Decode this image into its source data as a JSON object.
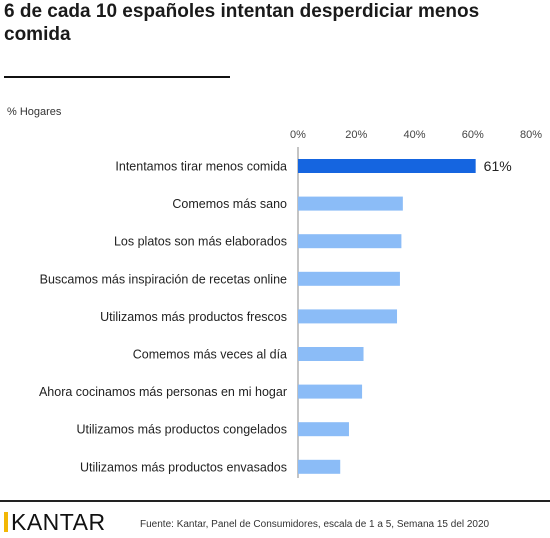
{
  "title": "6 de cada 10 españoles intentan desperdiciar menos comida",
  "unit_label": "% Hogares",
  "logo_text": "KANTAR",
  "source": "Fuente: Kantar, Panel de Consumidores, escala de 1 a 5, Semana 15 del 2020",
  "colors": {
    "highlight": "#1565e0",
    "bar": "#8bbcf7",
    "logo_accent": "#f2b705"
  },
  "chart_data": {
    "type": "bar",
    "orientation": "horizontal",
    "categories": [
      "Intentamos tirar menos comida",
      "Comemos más sano",
      "Los platos son más elaborados",
      "Buscamos más inspiración de recetas online",
      "Utilizamos más productos frescos",
      "Comemos más veces al día",
      "Ahora cocinamos más personas en mi hogar",
      "Utilizamos más productos congelados",
      "Utilizamos más productos envasados"
    ],
    "values": [
      61,
      36,
      35.5,
      35,
      34,
      22.5,
      22,
      17.5,
      14.5
    ],
    "data_labels": [
      "61%",
      "",
      "",
      "",
      "",
      "",
      "",
      "",
      ""
    ],
    "xlim": [
      0,
      80
    ],
    "ticks": [
      "0%",
      "20%",
      "40%",
      "60%",
      "80%"
    ],
    "tick_values": [
      0,
      20,
      40,
      60,
      80
    ],
    "grid": false
  }
}
